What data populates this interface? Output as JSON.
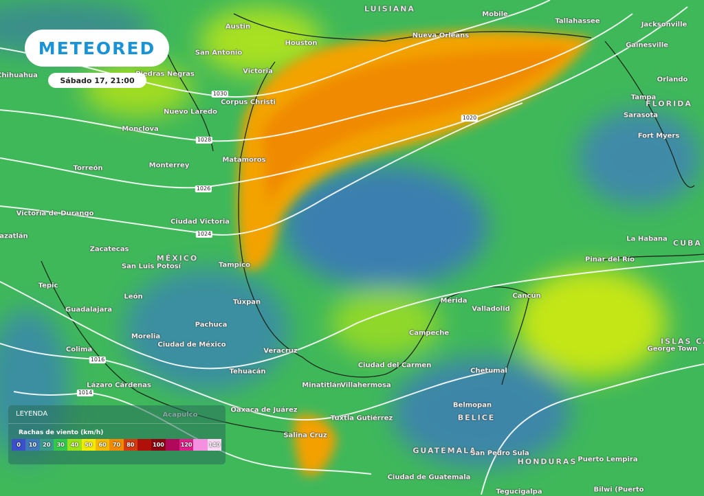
{
  "brand": {
    "logo_text": "METEORED",
    "date": "Sábado 17, 21:00"
  },
  "legend": {
    "title": "LEYENDA",
    "variable": "Rachas de viento (km/h)",
    "scale": [
      {
        "label": "0",
        "color": "#3a4fc8"
      },
      {
        "label": "10",
        "color": "#3f78b8"
      },
      {
        "label": "20",
        "color": "#3a9a8a"
      },
      {
        "label": "30",
        "color": "#33c84a"
      },
      {
        "label": "40",
        "color": "#9be21a"
      },
      {
        "label": "50",
        "color": "#f2ea00"
      },
      {
        "label": "60",
        "color": "#f5b800"
      },
      {
        "label": "70",
        "color": "#f08a00"
      },
      {
        "label": "80",
        "color": "#d23a10"
      },
      {
        "label": "",
        "color": "#b0100a"
      },
      {
        "label": "100",
        "color": "#8c0010"
      },
      {
        "label": "",
        "color": "#b0085a"
      },
      {
        "label": "120",
        "color": "#e0208a"
      },
      {
        "label": "",
        "color": "#f590e0"
      },
      {
        "label": "140",
        "color": "#fbd8f5"
      }
    ]
  },
  "places": [
    "LUISIANA",
    "Mobile",
    "Tallahassee",
    "Jacksonville",
    "Austin",
    "Houston",
    "Nueva Orleans",
    "Gainesville",
    "San Antonio",
    "Chihuahua",
    "Piedras Negras",
    "Victoria",
    "Orlando",
    "Corpus Christi",
    "Tampa",
    "FLORIDA",
    "Nuevo Laredo",
    "Sarasota",
    "Monclova",
    "Fort Myers",
    "Matamoros",
    "Torreón",
    "Monterrey",
    "Victoria de Durango",
    "Ciudad Victoria",
    "Mazatlán",
    "La Habana",
    "CUBA",
    "Zacatecas",
    "MÉXICO",
    "San Luis Potosí",
    "Tampico",
    "Pinar del Río",
    "Tepic",
    "León",
    "Túxpan",
    "Mérida",
    "Cancún",
    "Valladolid",
    "Guadalajara",
    "Pachuca",
    "Morelia",
    "Campeche",
    "Ciudad de México",
    "ISLAS CAI",
    "George Town",
    "Colima",
    "Veracruz",
    "Ciudad del Carmen",
    "Chetumal",
    "Tehuacán",
    "Minatitlán",
    "Villahermosa",
    "Lázaro Cárdenas",
    "Belmopan",
    "BELICE",
    "Oaxaca de Juárez",
    "Acapulco",
    "Tuxtla Gutiérrez",
    "Salina Cruz",
    "GUATEMALA",
    "San Pedro Sula",
    "HONDURAS",
    "Puerto Lempira",
    "Ciudad de Guatemala",
    "Tegucigalpa",
    "Bilwi (Puerto"
  ],
  "isobars": [
    "1030",
    "1028",
    "1026",
    "1024",
    "1020",
    "1016",
    "1014"
  ]
}
